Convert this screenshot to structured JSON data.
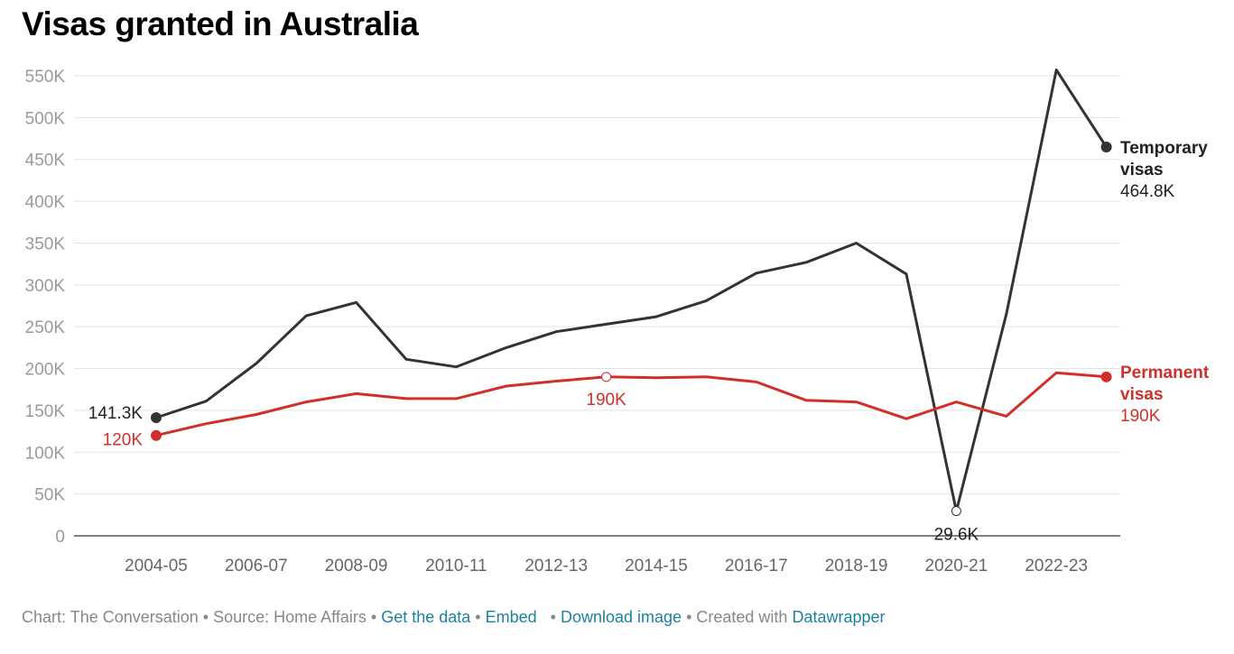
{
  "chart_data": {
    "type": "line",
    "title": "Visas granted in Australia",
    "xlabel": "",
    "ylabel": "",
    "ylim": [
      0,
      550000
    ],
    "y_ticks": [
      {
        "value": 0,
        "label": "0"
      },
      {
        "value": 50000,
        "label": "50K"
      },
      {
        "value": 100000,
        "label": "100K"
      },
      {
        "value": 150000,
        "label": "150K"
      },
      {
        "value": 200000,
        "label": "200K"
      },
      {
        "value": 250000,
        "label": "250K"
      },
      {
        "value": 300000,
        "label": "300K"
      },
      {
        "value": 350000,
        "label": "350K"
      },
      {
        "value": 400000,
        "label": "400K"
      },
      {
        "value": 450000,
        "label": "450K"
      },
      {
        "value": 500000,
        "label": "500K"
      },
      {
        "value": 550000,
        "label": "550K"
      }
    ],
    "x": [
      "2004-05",
      "2005-06",
      "2006-07",
      "2007-08",
      "2008-09",
      "2009-10",
      "2010-11",
      "2011-12",
      "2012-13",
      "2013-14",
      "2014-15",
      "2015-16",
      "2016-17",
      "2017-18",
      "2018-19",
      "2019-20",
      "2020-21",
      "2021-22",
      "2022-23",
      "2023-24"
    ],
    "x_tick_labels": [
      "2004-05",
      "2006-07",
      "2008-09",
      "2010-11",
      "2012-13",
      "2014-15",
      "2016-17",
      "2018-19",
      "2020-21",
      "2022-23"
    ],
    "grid": true,
    "series": [
      {
        "name": "Temporary visas",
        "name_lines": [
          "Temporary",
          "visas"
        ],
        "color": "#333333",
        "values": [
          141300,
          161000,
          206000,
          263000,
          279000,
          211000,
          202000,
          225000,
          244000,
          253000,
          262000,
          281000,
          314000,
          327000,
          350000,
          313000,
          29600,
          265000,
          557000,
          464800
        ],
        "end_label": "464.8K",
        "annotations": [
          {
            "index": 0,
            "label": "141.3K"
          },
          {
            "index": 16,
            "label": "29.6K"
          }
        ]
      },
      {
        "name": "Permanent visas",
        "name_lines": [
          "Permanent",
          "visas"
        ],
        "color": "#d1302a",
        "values": [
          120000,
          134000,
          145000,
          160000,
          170000,
          164000,
          164000,
          179000,
          185000,
          190000,
          189000,
          190000,
          184000,
          162000,
          160000,
          140000,
          160000,
          143000,
          195000,
          190000
        ],
        "end_label": "190K",
        "annotations": [
          {
            "index": 0,
            "label": "120K"
          },
          {
            "index": 9,
            "label": "190K"
          }
        ]
      }
    ]
  },
  "footer": {
    "chart_credit": "Chart: The Conversation",
    "source": "Source: Home Affairs",
    "get_data": "Get the data",
    "embed": "Embed",
    "download": "Download image",
    "created_with": "Created with",
    "datawrapper": "Datawrapper"
  }
}
